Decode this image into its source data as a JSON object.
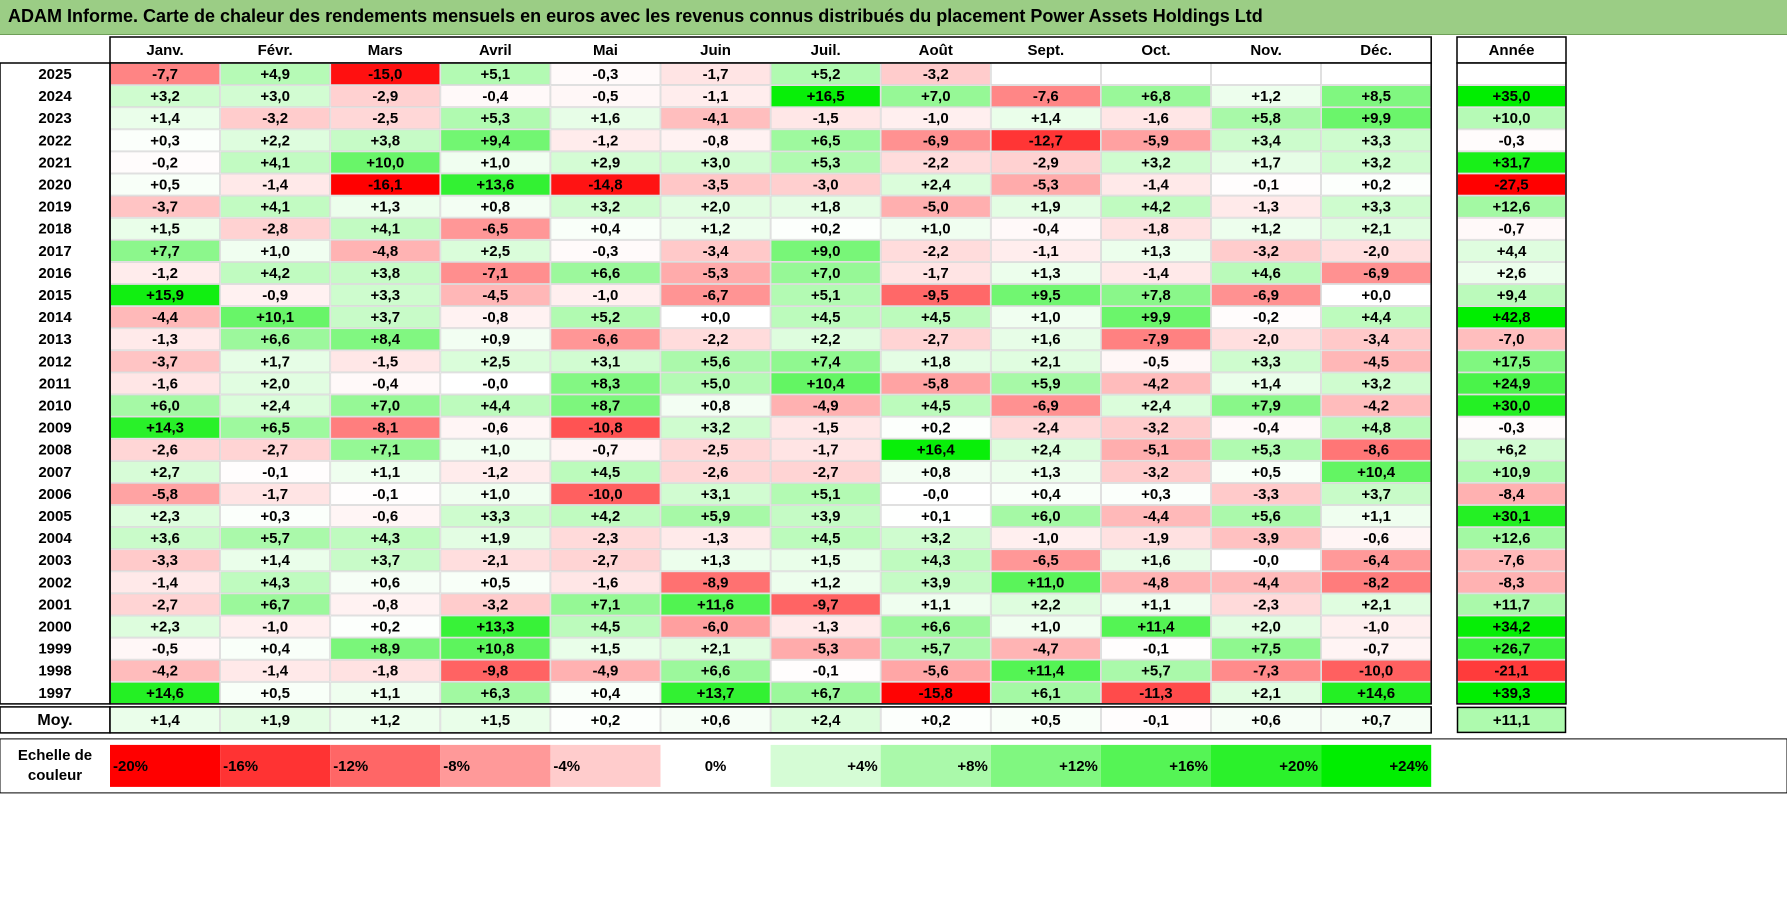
{
  "title": "ADAM Informe. Carte de chaleur des rendements mensuels en euros avec les revenus connus distribués du placement Power Assets Holdings Ltd",
  "chart_data": {
    "type": "heatmap",
    "columns": [
      "Janv.",
      "Févr.",
      "Mars",
      "Avril",
      "Mai",
      "Juin",
      "Juil.",
      "Août",
      "Sept.",
      "Oct.",
      "Nov.",
      "Déc."
    ],
    "year_column_label": "Année",
    "rows": [
      {
        "year": "2025",
        "values": [
          "-7,7",
          "+4,9",
          "-15,0",
          "+5,1",
          "-0,3",
          "-1,7",
          "+5,2",
          "-3,2",
          null,
          null,
          null,
          null
        ],
        "annual": null
      },
      {
        "year": "2024",
        "values": [
          "+3,2",
          "+3,0",
          "-2,9",
          "-0,4",
          "-0,5",
          "-1,1",
          "+16,5",
          "+7,0",
          "-7,6",
          "+6,8",
          "+1,2",
          "+8,5"
        ],
        "annual": "+35,0"
      },
      {
        "year": "2023",
        "values": [
          "+1,4",
          "-3,2",
          "-2,5",
          "+5,3",
          "+1,6",
          "-4,1",
          "-1,5",
          "-1,0",
          "+1,4",
          "-1,6",
          "+5,8",
          "+9,9"
        ],
        "annual": "+10,0"
      },
      {
        "year": "2022",
        "values": [
          "+0,3",
          "+2,2",
          "+3,8",
          "+9,4",
          "-1,2",
          "-0,8",
          "+6,5",
          "-6,9",
          "-12,7",
          "-5,9",
          "+3,4",
          "+3,3"
        ],
        "annual": "-0,3"
      },
      {
        "year": "2021",
        "values": [
          "-0,2",
          "+4,1",
          "+10,0",
          "+1,0",
          "+2,9",
          "+3,0",
          "+5,3",
          "-2,2",
          "-2,9",
          "+3,2",
          "+1,7",
          "+3,2"
        ],
        "annual": "+31,7"
      },
      {
        "year": "2020",
        "values": [
          "+0,5",
          "-1,4",
          "-16,1",
          "+13,6",
          "-14,8",
          "-3,5",
          "-3,0",
          "+2,4",
          "-5,3",
          "-1,4",
          "-0,1",
          "+0,2"
        ],
        "annual": "-27,5"
      },
      {
        "year": "2019",
        "values": [
          "-3,7",
          "+4,1",
          "+1,3",
          "+0,8",
          "+3,2",
          "+2,0",
          "+1,8",
          "-5,0",
          "+1,9",
          "+4,2",
          "-1,3",
          "+3,3"
        ],
        "annual": "+12,6"
      },
      {
        "year": "2018",
        "values": [
          "+1,5",
          "-2,8",
          "+4,1",
          "-6,5",
          "+0,4",
          "+1,2",
          "+0,2",
          "+1,0",
          "-0,4",
          "-1,8",
          "+1,2",
          "+2,1"
        ],
        "annual": "-0,7"
      },
      {
        "year": "2017",
        "values": [
          "+7,7",
          "+1,0",
          "-4,8",
          "+2,5",
          "-0,3",
          "-3,4",
          "+9,0",
          "-2,2",
          "-1,1",
          "+1,3",
          "-3,2",
          "-2,0"
        ],
        "annual": "+4,4"
      },
      {
        "year": "2016",
        "values": [
          "-1,2",
          "+4,2",
          "+3,8",
          "-7,1",
          "+6,6",
          "-5,3",
          "+7,0",
          "-1,7",
          "+1,3",
          "-1,4",
          "+4,6",
          "-6,9"
        ],
        "annual": "+2,6"
      },
      {
        "year": "2015",
        "values": [
          "+15,9",
          "-0,9",
          "+3,3",
          "-4,5",
          "-1,0",
          "-6,7",
          "+5,1",
          "-9,5",
          "+9,5",
          "+7,8",
          "-6,9",
          "+0,0"
        ],
        "annual": "+9,4"
      },
      {
        "year": "2014",
        "values": [
          "-4,4",
          "+10,1",
          "+3,7",
          "-0,8",
          "+5,2",
          "+0,0",
          "+4,5",
          "+4,5",
          "+1,0",
          "+9,9",
          "-0,2",
          "+4,4"
        ],
        "annual": "+42,8"
      },
      {
        "year": "2013",
        "values": [
          "-1,3",
          "+6,6",
          "+8,4",
          "+0,9",
          "-6,6",
          "-2,2",
          "+2,2",
          "-2,7",
          "+1,6",
          "-7,9",
          "-2,0",
          "-3,4"
        ],
        "annual": "-7,0"
      },
      {
        "year": "2012",
        "values": [
          "-3,7",
          "+1,7",
          "-1,5",
          "+2,5",
          "+3,1",
          "+5,6",
          "+7,4",
          "+1,8",
          "+2,1",
          "-0,5",
          "+3,3",
          "-4,5"
        ],
        "annual": "+17,5"
      },
      {
        "year": "2011",
        "values": [
          "-1,6",
          "+2,0",
          "-0,4",
          "-0,0",
          "+8,3",
          "+5,0",
          "+10,4",
          "-5,8",
          "+5,9",
          "-4,2",
          "+1,4",
          "+3,2"
        ],
        "annual": "+24,9"
      },
      {
        "year": "2010",
        "values": [
          "+6,0",
          "+2,4",
          "+7,0",
          "+4,4",
          "+8,7",
          "+0,8",
          "-4,9",
          "+4,5",
          "-6,9",
          "+2,4",
          "+7,9",
          "-4,2"
        ],
        "annual": "+30,0"
      },
      {
        "year": "2009",
        "values": [
          "+14,3",
          "+6,5",
          "-8,1",
          "-0,6",
          "-10,8",
          "+3,2",
          "-1,5",
          "+0,2",
          "-2,4",
          "-3,2",
          "-0,4",
          "+4,8"
        ],
        "annual": "-0,3"
      },
      {
        "year": "2008",
        "values": [
          "-2,6",
          "-2,7",
          "+7,1",
          "+1,0",
          "-0,7",
          "-2,5",
          "-1,7",
          "+16,4",
          "+2,4",
          "-5,1",
          "+5,3",
          "-8,6"
        ],
        "annual": "+6,2"
      },
      {
        "year": "2007",
        "values": [
          "+2,7",
          "-0,1",
          "+1,1",
          "-1,2",
          "+4,5",
          "-2,6",
          "-2,7",
          "+0,8",
          "+1,3",
          "-3,2",
          "+0,5",
          "+10,4"
        ],
        "annual": "+10,9"
      },
      {
        "year": "2006",
        "values": [
          "-5,8",
          "-1,7",
          "-0,1",
          "+1,0",
          "-10,0",
          "+3,1",
          "+5,1",
          "-0,0",
          "+0,4",
          "+0,3",
          "-3,3",
          "+3,7"
        ],
        "annual": "-8,4"
      },
      {
        "year": "2005",
        "values": [
          "+2,3",
          "+0,3",
          "-0,6",
          "+3,3",
          "+4,2",
          "+5,9",
          "+3,9",
          "+0,1",
          "+6,0",
          "-4,4",
          "+5,6",
          "+1,1"
        ],
        "annual": "+30,1"
      },
      {
        "year": "2004",
        "values": [
          "+3,6",
          "+5,7",
          "+4,3",
          "+1,9",
          "-2,3",
          "-1,3",
          "+4,5",
          "+3,2",
          "-1,0",
          "-1,9",
          "-3,9",
          "-0,6"
        ],
        "annual": "+12,6"
      },
      {
        "year": "2003",
        "values": [
          "-3,3",
          "+1,4",
          "+3,7",
          "-2,1",
          "-2,7",
          "+1,3",
          "+1,5",
          "+4,3",
          "-6,5",
          "+1,6",
          "-0,0",
          "-6,4"
        ],
        "annual": "-7,6"
      },
      {
        "year": "2002",
        "values": [
          "-1,4",
          "+4,3",
          "+0,6",
          "+0,5",
          "-1,6",
          "-8,9",
          "+1,2",
          "+3,9",
          "+11,0",
          "-4,8",
          "-4,4",
          "-8,2"
        ],
        "annual": "-8,3"
      },
      {
        "year": "2001",
        "values": [
          "-2,7",
          "+6,7",
          "-0,8",
          "-3,2",
          "+7,1",
          "+11,6",
          "-9,7",
          "+1,1",
          "+2,2",
          "+1,1",
          "-2,3",
          "+2,1"
        ],
        "annual": "+11,7"
      },
      {
        "year": "2000",
        "values": [
          "+2,3",
          "-1,0",
          "+0,2",
          "+13,3",
          "+4,5",
          "-6,0",
          "-1,3",
          "+6,6",
          "+1,0",
          "+11,4",
          "+2,0",
          "-1,0"
        ],
        "annual": "+34,2"
      },
      {
        "year": "1999",
        "values": [
          "-0,5",
          "+0,4",
          "+8,9",
          "+10,8",
          "+1,5",
          "+2,1",
          "-5,3",
          "+5,7",
          "-4,7",
          "-0,1",
          "+7,5",
          "-0,7"
        ],
        "annual": "+26,7"
      },
      {
        "year": "1998",
        "values": [
          "-4,2",
          "-1,4",
          "-1,8",
          "-9,8",
          "-4,9",
          "+6,6",
          "-0,1",
          "-5,6",
          "+11,4",
          "+5,7",
          "-7,3",
          "-10,0"
        ],
        "annual": "-21,1"
      },
      {
        "year": "1997",
        "values": [
          "+14,6",
          "+0,5",
          "+1,1",
          "+6,3",
          "+0,4",
          "+13,7",
          "+6,7",
          "-15,8",
          "+6,1",
          "-11,3",
          "+2,1",
          "+14,6"
        ],
        "annual": "+39,3"
      }
    ],
    "average": {
      "label": "Moy.",
      "values": [
        "+1,4",
        "+1,9",
        "+1,2",
        "+1,5",
        "+0,2",
        "+0,6",
        "+2,4",
        "+0,2",
        "+0,5",
        "-0,1",
        "+0,6",
        "+0,7"
      ],
      "annual": "+11,1"
    },
    "scale": {
      "label": "Echelle de couleur",
      "labels": [
        "-20%",
        "-16%",
        "-12%",
        "-8%",
        "-4%",
        "0%",
        "+4%",
        "+8%",
        "+12%",
        "+16%",
        "+20%",
        "+24%"
      ],
      "values": [
        -20,
        -16,
        -12,
        -8,
        -4,
        0,
        4,
        8,
        12,
        16,
        20,
        24
      ]
    },
    "colors": {
      "negative_max": "#ff0000",
      "neutral": "#ffffff",
      "positive_max": "#00ee00",
      "title_bar": "#9bcd85"
    }
  }
}
